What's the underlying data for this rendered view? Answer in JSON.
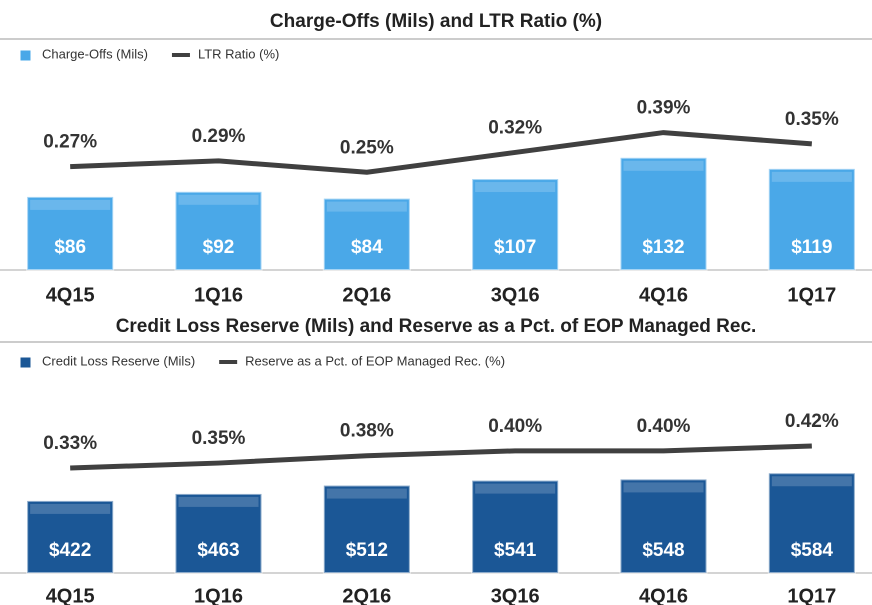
{
  "chart_data": [
    {
      "type": "bar",
      "title": "Charge-Offs (Mils) and LTR Ratio (%)",
      "categories": [
        "4Q15",
        "1Q16",
        "2Q16",
        "3Q16",
        "4Q16",
        "1Q17"
      ],
      "series": [
        {
          "name": "Charge-Offs (Mils)",
          "color": "#4aa8e8",
          "values": [
            86,
            92,
            84,
            107,
            132,
            119
          ],
          "value_labels": [
            "$86",
            "$92",
            "$84",
            "$107",
            "$132",
            "$119"
          ]
        },
        {
          "name": "LTR Ratio (%)",
          "type": "line",
          "axis": "y2",
          "color": "#404040",
          "values": [
            0.27,
            0.29,
            0.25,
            0.32,
            0.39,
            0.35
          ],
          "value_labels": [
            "0.27%",
            "0.29%",
            "0.25%",
            "0.32%",
            "0.39%",
            "0.35%"
          ]
        }
      ],
      "ylim": [
        0,
        250
      ],
      "y2lim": [
        -0.095,
        0.655
      ]
    },
    {
      "type": "bar",
      "title": "Credit Loss Reserve (Mils) and Reserve as a Pct. of EOP Managed Rec.",
      "categories": [
        "4Q15",
        "1Q16",
        "2Q16",
        "3Q16",
        "4Q16",
        "1Q17"
      ],
      "series": [
        {
          "name": "Credit Loss Reserve (Mils)",
          "color": "#1b5796",
          "values": [
            422,
            463,
            512,
            541,
            548,
            584
          ],
          "value_labels": [
            "$422",
            "$463",
            "$512",
            "$541",
            "$548",
            "$584"
          ]
        },
        {
          "name": "Reserve as a Pct. of EOP Managed Rec. (%)",
          "type": "line",
          "axis": "y2",
          "color": "#404040",
          "values": [
            0.33,
            0.35,
            0.38,
            0.4,
            0.4,
            0.42
          ],
          "value_labels": [
            "0.33%",
            "0.35%",
            "0.38%",
            "0.40%",
            "0.40%",
            "0.42%"
          ]
        }
      ],
      "ylim": [
        0,
        1130
      ],
      "y2lim": [
        -0.1,
        0.69
      ]
    }
  ]
}
